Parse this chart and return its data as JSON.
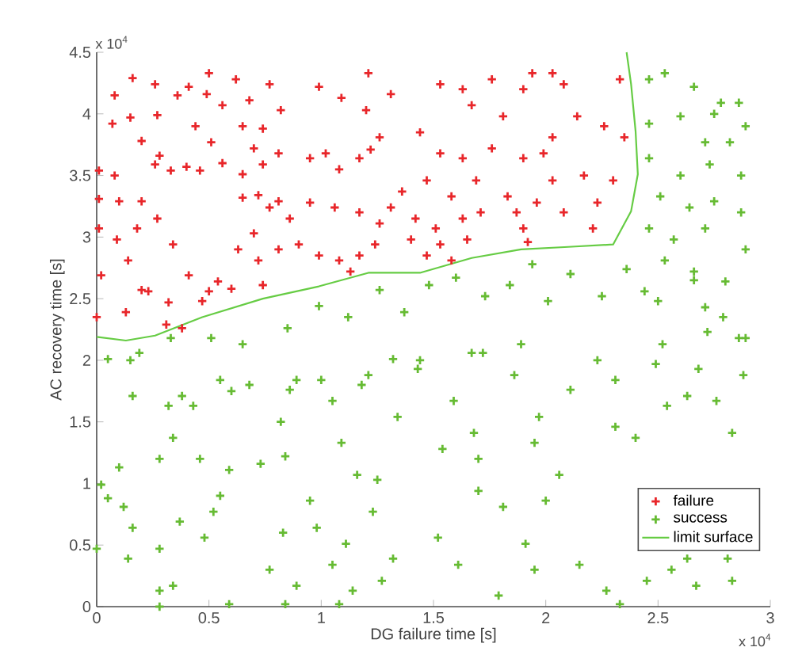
{
  "chart_data": {
    "type": "scatter",
    "xlabel": "DG failure time [s]",
    "ylabel": "AC recovery time [s]",
    "xlim": [
      0,
      3
    ],
    "ylim": [
      0,
      4.5
    ],
    "xticks": [
      0,
      0.5,
      1,
      1.5,
      2,
      2.5,
      3
    ],
    "yticks": [
      0,
      0.5,
      1,
      1.5,
      2,
      2.5,
      3,
      3.5,
      4,
      4.5
    ],
    "marker": "cross",
    "grid": false,
    "legend": "bottom right",
    "annotations": [
      "x 10$^{4}$",
      "x 10$^{4}$"
    ],
    "series": [
      {
        "name": "failure",
        "color": "#e8262a",
        "x": [
          0.08,
          0.16,
          0.26,
          0.07,
          0.15,
          0.27,
          0.01,
          0.08,
          0.01,
          0.1,
          0.2,
          0.26,
          0.33,
          0.4,
          0.46,
          0.2,
          0.28,
          0.36,
          0.41,
          0.49,
          0.5,
          0.44,
          0.51,
          0.56,
          0.62,
          0.68,
          0.77,
          0.65,
          0.74,
          0.82,
          0.7,
          0.56,
          0.65,
          0.74,
          0.81,
          0.72,
          0.65,
          0.81,
          0.95,
          1.02,
          1.08,
          1.17,
          1.21,
          0.99,
          1.09,
          1.2,
          1.31,
          1.26,
          1.22,
          1.44,
          1.53,
          1.63,
          1.76,
          1.94,
          2.03,
          2.08,
          1.67,
          1.81,
          1.9,
          2.03,
          2.14,
          2.26,
          2.33,
          2.35,
          1.53,
          1.63,
          1.76,
          1.9,
          1.99,
          2.17,
          2.3,
          2.23,
          2.03,
          1.96,
          1.83,
          1.69,
          1.58,
          1.47,
          1.36,
          1.31,
          1.42,
          1.51,
          1.63,
          1.71,
          1.87,
          1.9,
          2.08,
          2.21,
          1.92,
          1.26,
          1.17,
          1.06,
          0.95,
          0.86,
          0.77,
          0.7,
          0.63,
          0.72,
          0.81,
          0.9,
          0.99,
          1.08,
          1.17,
          1.13,
          1.24,
          1.4,
          1.47,
          1.53,
          1.58,
          1.65,
          0.54,
          0.5,
          0.41,
          0.32,
          0.23,
          0.14,
          0.09,
          0.18,
          0.27,
          0.34,
          0.02,
          0.01,
          0.0,
          0.13,
          0.31,
          0.38,
          0.47,
          0.6,
          0.74,
          0.2
        ],
        "values": [
          4.15,
          4.29,
          4.24,
          3.92,
          3.97,
          3.99,
          3.54,
          3.5,
          3.31,
          3.29,
          3.29,
          3.59,
          3.54,
          3.57,
          3.54,
          3.78,
          3.66,
          4.15,
          4.22,
          4.16,
          4.33,
          3.9,
          3.77,
          4.07,
          4.28,
          4.11,
          4.24,
          3.9,
          3.88,
          4.03,
          3.72,
          3.6,
          3.51,
          3.59,
          3.68,
          3.34,
          3.32,
          3.29,
          3.64,
          3.68,
          3.55,
          3.64,
          4.33,
          4.22,
          4.13,
          4.03,
          4.16,
          3.81,
          3.71,
          3.85,
          4.24,
          4.2,
          4.28,
          4.33,
          4.33,
          4.24,
          4.07,
          3.98,
          4.2,
          3.81,
          3.98,
          3.9,
          4.28,
          3.81,
          3.68,
          3.64,
          3.72,
          3.64,
          3.68,
          3.5,
          3.46,
          3.28,
          3.46,
          3.28,
          3.33,
          3.46,
          3.33,
          3.46,
          3.37,
          3.24,
          3.15,
          3.07,
          3.15,
          3.2,
          3.2,
          3.07,
          3.2,
          3.07,
          2.96,
          3.11,
          3.2,
          3.24,
          3.28,
          3.15,
          3.24,
          3.03,
          2.9,
          2.81,
          2.9,
          2.94,
          2.85,
          2.81,
          2.85,
          2.72,
          2.94,
          2.98,
          2.85,
          2.94,
          2.81,
          2.98,
          2.64,
          2.56,
          2.69,
          2.47,
          2.56,
          2.81,
          2.98,
          3.07,
          3.15,
          2.94,
          2.69,
          3.07,
          2.35,
          2.39,
          2.29,
          2.26,
          2.48,
          2.58,
          2.61,
          2.57
        ]
      },
      {
        "name": "success",
        "color": "#66bb33",
        "x": [
          2.46,
          2.53,
          2.66,
          2.78,
          2.86,
          2.46,
          2.6,
          2.75,
          2.89,
          2.71,
          2.82,
          2.46,
          2.6,
          2.73,
          2.87,
          2.51,
          2.64,
          2.75,
          2.87,
          2.46,
          2.57,
          2.71,
          2.89,
          2.53,
          2.66,
          2.8,
          2.44,
          2.71,
          0.15,
          0.33,
          0.51,
          0.65,
          0.85,
          0.99,
          1.12,
          1.26,
          1.37,
          1.48,
          1.6,
          1.73,
          1.84,
          1.94,
          2.01,
          2.11,
          2.25,
          2.36,
          2.5,
          2.66,
          2.79,
          2.89,
          1.89,
          1.67,
          1.44,
          1.21,
          0.89,
          0.6,
          0.38,
          2.23,
          2.52,
          2.68,
          0.02,
          0.05,
          0.12,
          0.0,
          0.14,
          0.16,
          0.1,
          0.28,
          0.34,
          0.46,
          0.55,
          0.48,
          0.28,
          0.28,
          0.34,
          0.28,
          0.59,
          0.52,
          0.77,
          0.83,
          0.84,
          0.89,
          0.95,
          0.98,
          1.05,
          1.08,
          1.14,
          1.11,
          1.09,
          1.16,
          1.25,
          1.23,
          1.27,
          1.32,
          0.84,
          0.73,
          0.59,
          0.37,
          1.52,
          1.61,
          1.54,
          1.7,
          1.7,
          1.81,
          1.79,
          1.91,
          1.95,
          1.95,
          2.0,
          2.06,
          2.15,
          2.27,
          2.33,
          2.45,
          2.56,
          2.63,
          2.67,
          2.81,
          2.83,
          2.31,
          2.4,
          2.54,
          2.63,
          2.76,
          2.83,
          2.88,
          2.86,
          2.72,
          2.31,
          2.49,
          2.11,
          1.86,
          1.72,
          1.59,
          1.43,
          1.32,
          1.18,
          1.0,
          0.86,
          0.68,
          0.55,
          0.43,
          0.32,
          0.16,
          0.05,
          0.19,
          1.05,
          1.34,
          1.97,
          1.68,
          0.82
        ],
        "values": [
          4.28,
          4.33,
          4.22,
          4.09,
          4.09,
          3.92,
          3.98,
          4.0,
          3.9,
          3.77,
          3.77,
          3.64,
          3.5,
          3.59,
          3.5,
          3.33,
          3.24,
          3.29,
          3.2,
          3.07,
          2.98,
          3.07,
          2.9,
          2.81,
          2.72,
          2.64,
          2.56,
          2.43,
          2.0,
          2.18,
          2.18,
          2.13,
          2.26,
          2.44,
          2.35,
          2.57,
          2.39,
          2.61,
          2.67,
          2.52,
          2.61,
          2.78,
          2.48,
          2.7,
          2.52,
          2.74,
          2.48,
          2.65,
          2.35,
          2.18,
          2.13,
          2.06,
          2.0,
          1.88,
          1.84,
          1.75,
          1.71,
          2.0,
          2.13,
          1.93,
          0.99,
          0.88,
          0.81,
          0.47,
          0.39,
          0.64,
          1.13,
          1.2,
          1.37,
          1.2,
          0.9,
          0.56,
          0.47,
          0.13,
          0.17,
          0.0,
          0.02,
          0.77,
          0.3,
          0.6,
          0.02,
          0.17,
          0.86,
          0.64,
          0.34,
          0.02,
          0.13,
          0.51,
          1.33,
          1.07,
          1.03,
          0.77,
          0.21,
          0.39,
          1.22,
          1.16,
          1.11,
          0.69,
          0.56,
          0.34,
          1.28,
          1.2,
          0.94,
          0.81,
          0.09,
          0.51,
          0.3,
          1.33,
          0.86,
          1.07,
          0.34,
          0.13,
          0.02,
          0.21,
          0.3,
          0.39,
          0.17,
          0.39,
          0.21,
          1.46,
          1.37,
          1.63,
          1.71,
          1.67,
          1.41,
          1.88,
          2.18,
          2.23,
          1.84,
          1.97,
          1.76,
          1.88,
          2.06,
          1.67,
          1.93,
          2.01,
          1.8,
          1.84,
          1.76,
          1.8,
          1.84,
          1.63,
          1.63,
          1.71,
          2.01,
          2.06,
          1.67,
          1.54,
          1.54,
          1.41,
          1.5
        ]
      },
      {
        "name": "limit surface",
        "type": "line",
        "marker": "none",
        "color": "#66cc44",
        "x": [
          0,
          0.13,
          0.26,
          0.47,
          0.74,
          0.99,
          1.21,
          1.44,
          1.67,
          1.89,
          2.1,
          2.3,
          2.38,
          2.41,
          2.4,
          2.38,
          2.36
        ],
        "values": [
          2.19,
          2.16,
          2.2,
          2.35,
          2.5,
          2.6,
          2.71,
          2.71,
          2.83,
          2.9,
          2.92,
          2.94,
          3.21,
          3.51,
          3.86,
          4.24,
          4.5
        ]
      }
    ]
  }
}
